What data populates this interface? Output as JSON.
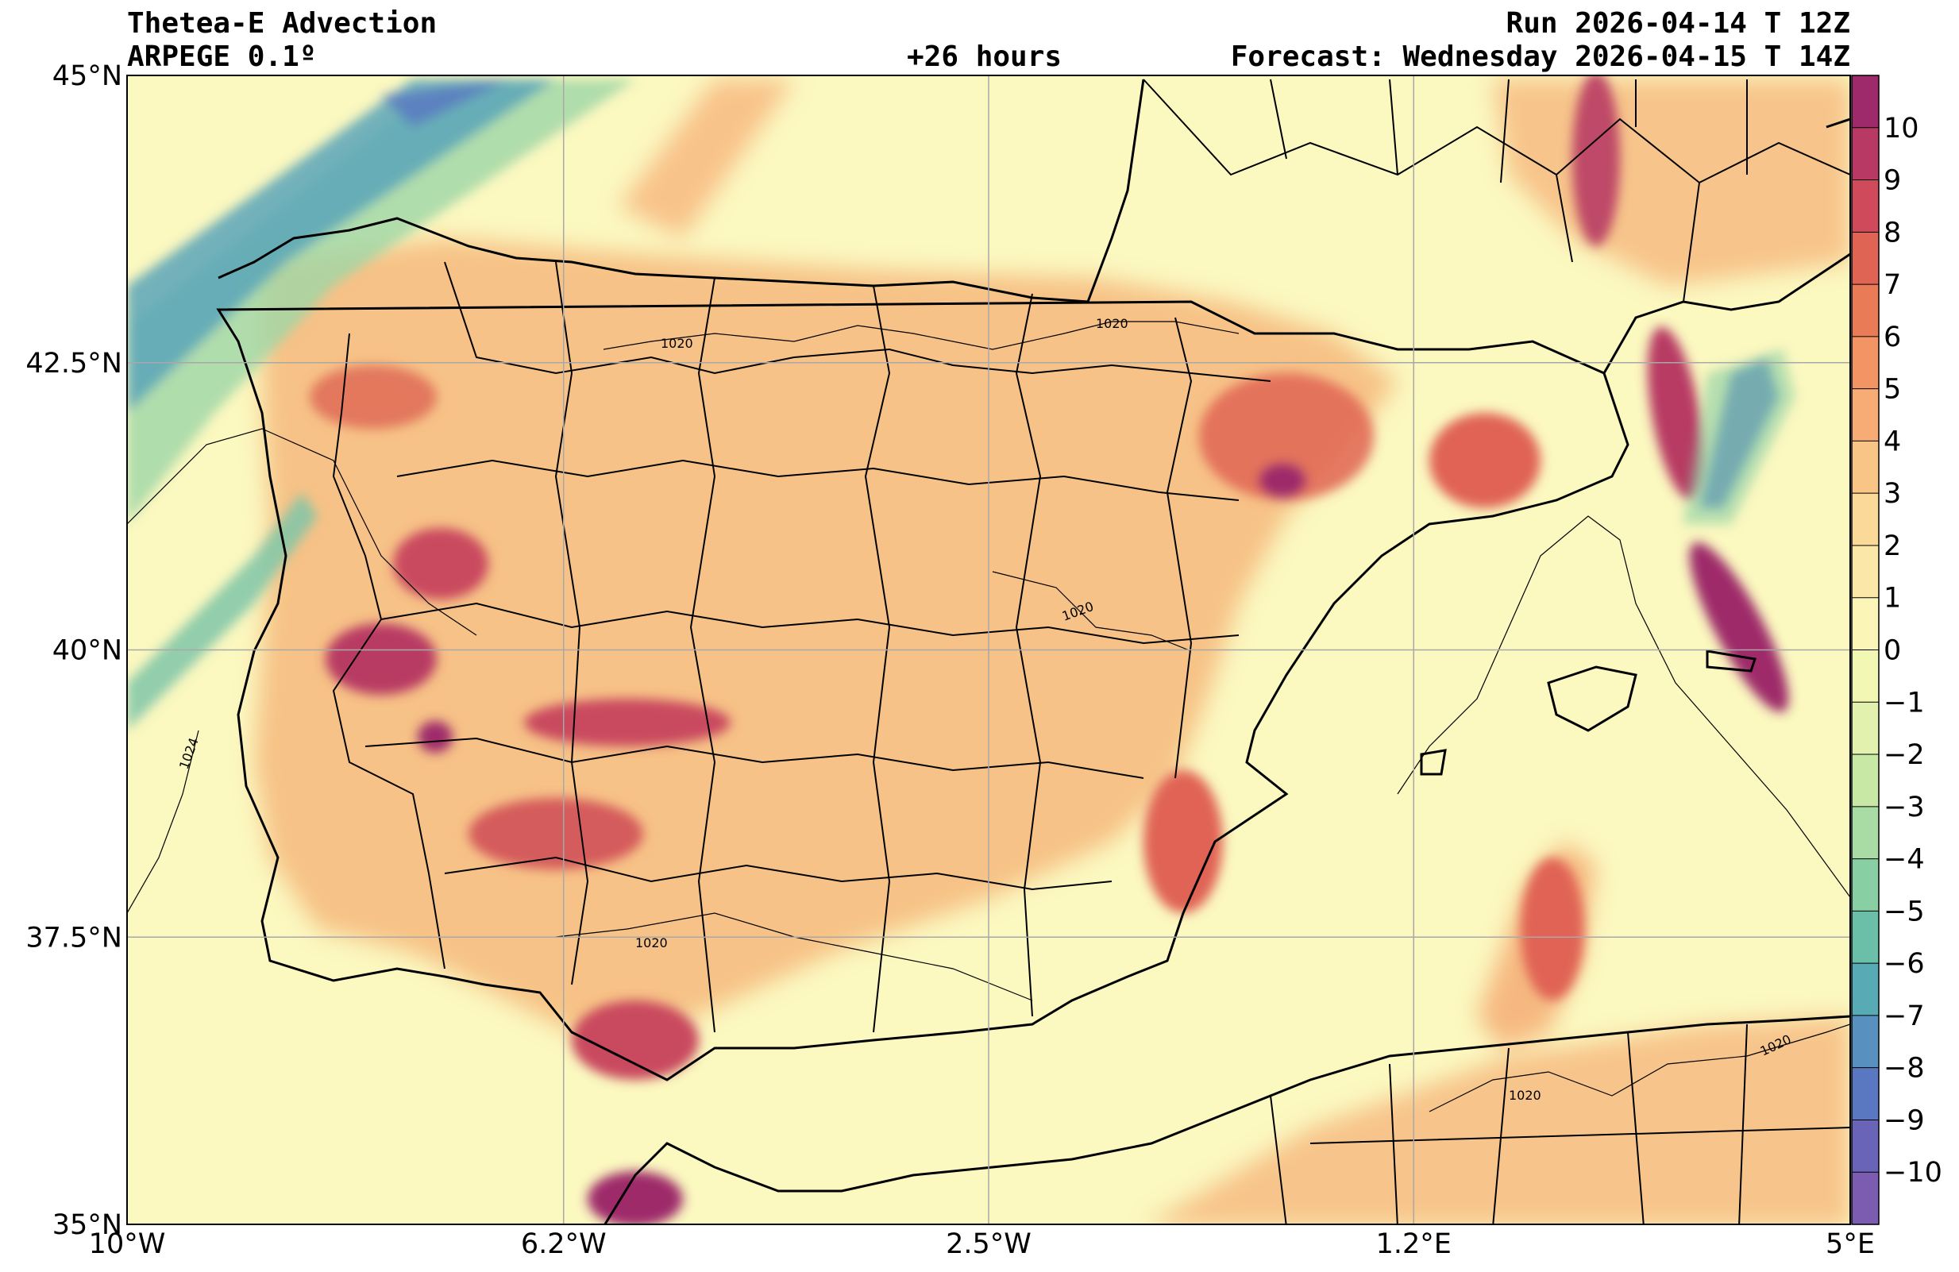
{
  "header": {
    "title": "Thetea-E Advection",
    "model": "ARPEGE 0.1º",
    "lead": "+26 hours",
    "run": "Run 2026-04-14 T 12Z",
    "forecast": "Forecast: Wednesday 2026-04-15 T 14Z"
  },
  "map": {
    "extent": {
      "lon": [
        -10,
        5
      ],
      "lat": [
        35,
        45
      ]
    },
    "lon_ticks": [
      {
        "value": -10,
        "label": "10°W"
      },
      {
        "value": -6.2,
        "label": "6.2°W"
      },
      {
        "value": -2.5,
        "label": "2.5°W"
      },
      {
        "value": 1.2,
        "label": "1.2°E"
      },
      {
        "value": 5,
        "label": "5°E"
      }
    ],
    "lat_ticks": [
      {
        "value": 45,
        "label": "45°N"
      },
      {
        "value": 42.5,
        "label": "42.5°N"
      },
      {
        "value": 40,
        "label": "40°N"
      },
      {
        "value": 37.5,
        "label": "37.5°N"
      },
      {
        "value": 35,
        "label": "35°N"
      }
    ],
    "grid": true,
    "isobar_label": "1020",
    "isobar_labels_alt": "1024",
    "background_color": "#fbf8c0"
  },
  "colorbar": {
    "levels": [
      10,
      9,
      8,
      7,
      6,
      5,
      4,
      3,
      2,
      1,
      0,
      -1,
      -2,
      -3,
      -4,
      -5,
      -6,
      -7,
      -8,
      -9,
      -10
    ],
    "colors": [
      "#9e2a6b",
      "#b83a64",
      "#cf4b5c",
      "#e06454",
      "#ea7b57",
      "#f29463",
      "#f6ac74",
      "#f9c587",
      "#fbd998",
      "#fbe8a8",
      "#fbf5b8",
      "#f2f7b4",
      "#e2f2ae",
      "#c8e8a6",
      "#a8dca4",
      "#88cfa4",
      "#6bbfa8",
      "#58aab4",
      "#5890c0",
      "#5a78c2",
      "#6a64b8",
      "#7c5cb0"
    ]
  }
}
